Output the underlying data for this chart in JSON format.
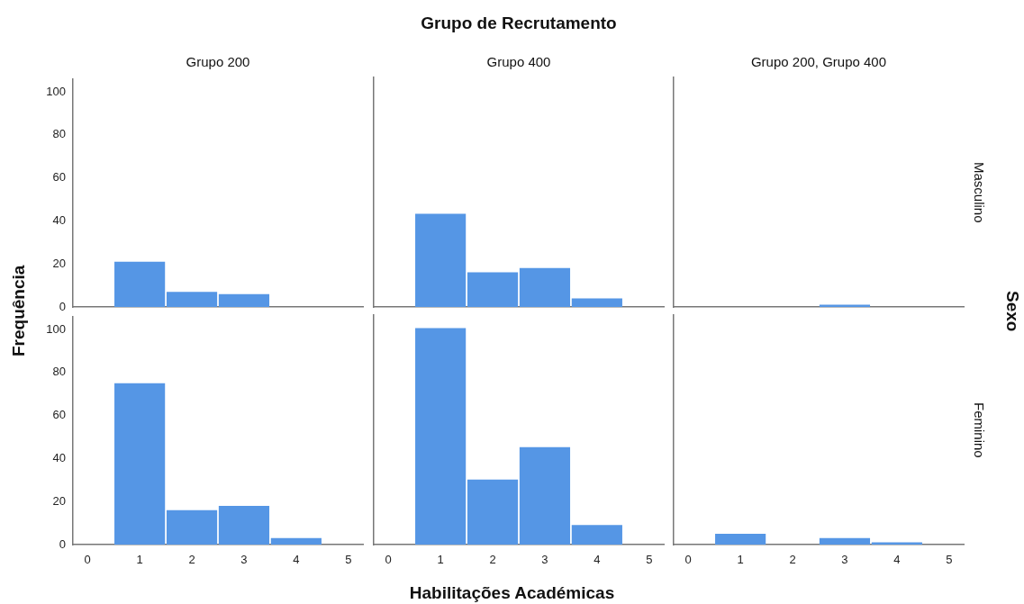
{
  "chart_data": [
    {
      "type": "histogram",
      "title": "Grupo 200",
      "ylabel": "Frequência",
      "bins": [
        0.5,
        1.5,
        2.5,
        3.5,
        4.5
      ],
      "values": [
        21,
        7,
        6,
        0
      ],
      "color": "#5596e5",
      "xlim": [
        -0.28,
        5.28
      ],
      "xticks": [
        0,
        1,
        2,
        3,
        4,
        5
      ],
      "ylim": [
        0,
        106
      ],
      "yticks": [
        0,
        20,
        40,
        60,
        80,
        100
      ],
      "tick_labels": "y"
    },
    {
      "type": "histogram",
      "title": "Grupo 400",
      "annotations": [
        "Grupo de Recrutamento"
      ],
      "bins": [
        0.5,
        1.5,
        2.5,
        3.5,
        4.5
      ],
      "values": [
        43,
        16,
        18,
        4
      ],
      "color": "#5596e5",
      "xlim": [
        -0.28,
        5.28
      ],
      "xticks": [
        0,
        1,
        2,
        3,
        4,
        5
      ],
      "ylim": [
        0,
        106
      ],
      "yticks": [
        0,
        20,
        40,
        60,
        80,
        100
      ],
      "tick_labels": false
    },
    {
      "type": "histogram",
      "title": "Grupo 200, Grupo 400",
      "y2label": "Masculino",
      "annotations": [
        "Sexo"
      ],
      "bins": [
        0.5,
        1.5,
        2.5,
        3.5,
        4.5
      ],
      "values": [
        0,
        0,
        1,
        0
      ],
      "color": "#5596e5",
      "xlim": [
        -0.28,
        5.28
      ],
      "xticks": [
        0,
        1,
        2,
        3,
        4,
        5
      ],
      "ylim": [
        0,
        106
      ],
      "yticks": [
        0,
        20,
        40,
        60,
        80,
        100
      ],
      "tick_labels": false
    },
    {
      "type": "histogram",
      "bins": [
        0.5,
        1.5,
        2.5,
        3.5,
        4.5
      ],
      "values": [
        75,
        16,
        18,
        3
      ],
      "color": "#5596e5",
      "xlim": [
        -0.28,
        5.28
      ],
      "xticks": [
        0,
        1,
        2,
        3,
        4,
        5
      ],
      "ylim": [
        0,
        106
      ],
      "yticks": [
        0,
        20,
        40,
        60,
        80,
        100
      ]
    },
    {
      "type": "histogram",
      "xlabel": "Habilitações Académicas",
      "bins": [
        0.5,
        1.5,
        2.5,
        3.5,
        4.5
      ],
      "values": [
        100,
        30,
        45,
        9
      ],
      "color": "#5596e5",
      "xlim": [
        -0.28,
        5.28
      ],
      "xticks": [
        0,
        1,
        2,
        3,
        4,
        5
      ],
      "ylim": [
        0,
        106
      ],
      "yticks": [
        0,
        20,
        40,
        60,
        80,
        100
      ],
      "tick_labels": "x"
    },
    {
      "type": "histogram",
      "y2label": "Feminino",
      "bins": [
        0.5,
        1.5,
        2.5,
        3.5,
        4.5
      ],
      "values": [
        5,
        0,
        3,
        1
      ],
      "color": "#5596e5",
      "xlim": [
        -0.28,
        5.28
      ],
      "xticks": [
        0,
        1,
        2,
        3,
        4,
        5
      ],
      "ylim": [
        0,
        106
      ],
      "yticks": [
        0,
        20,
        40,
        60,
        80,
        100
      ],
      "tick_labels": "x"
    }
  ]
}
